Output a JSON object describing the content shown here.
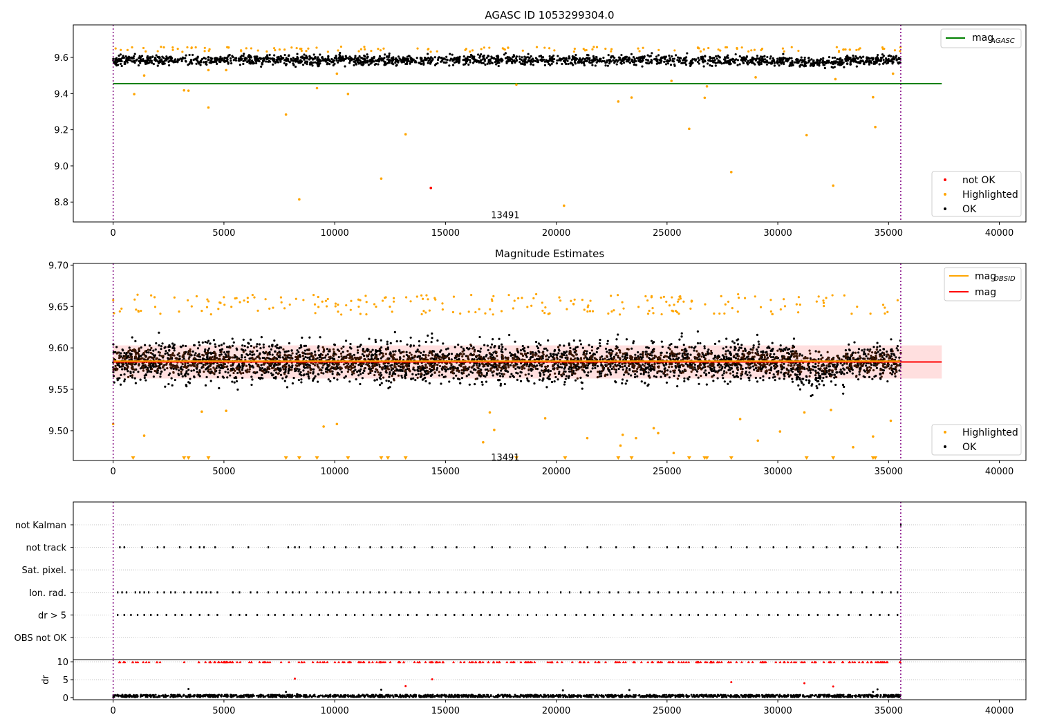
{
  "chart_data": [
    {
      "type": "scatter",
      "title": "AGASC ID 1053299304.0",
      "xlim": [
        -1800,
        41200
      ],
      "ylim": [
        8.69,
        9.78
      ],
      "xticks": [
        0,
        5000,
        10000,
        15000,
        20000,
        25000,
        30000,
        35000,
        40000
      ],
      "xtick_labels": [
        "0",
        "5000",
        "10000",
        "15000",
        "20000",
        "25000",
        "30000",
        "35000",
        "40000"
      ],
      "yticks": [
        8.8,
        9.0,
        9.2,
        9.4,
        9.6
      ],
      "ytick_labels": [
        "8.8",
        "9.0",
        "9.2",
        "9.4",
        "9.6"
      ],
      "vlines": [
        0,
        35550
      ],
      "vline_color": "#800080",
      "band": {
        "x": [
          0,
          35550
        ],
        "center": 9.585,
        "spread": 0.025
      },
      "hline": {
        "name": "mag_AGASC",
        "value": 9.455,
        "x": [
          0,
          37400
        ],
        "color": "#008000"
      },
      "annotation": {
        "text": "13491",
        "x": 17700,
        "y": 8.73
      },
      "highlighted_points": [
        [
          950,
          9.397
        ],
        [
          3200,
          9.418
        ],
        [
          3400,
          9.416
        ],
        [
          4300,
          9.323
        ],
        [
          7800,
          9.284
        ],
        [
          8400,
          8.815
        ],
        [
          9200,
          9.43
        ],
        [
          10600,
          9.398
        ],
        [
          12100,
          8.93
        ],
        [
          13200,
          9.175
        ],
        [
          14340,
          8.878
        ],
        [
          20350,
          8.78
        ],
        [
          22800,
          9.356
        ],
        [
          23400,
          9.378
        ],
        [
          26000,
          9.205
        ],
        [
          26700,
          9.377
        ],
        [
          27900,
          8.966
        ],
        [
          31300,
          9.17
        ],
        [
          32500,
          8.891
        ],
        [
          34300,
          9.38
        ],
        [
          34400,
          9.215
        ],
        [
          1400,
          9.5
        ],
        [
          4300,
          9.53
        ],
        [
          5100,
          9.53
        ],
        [
          10100,
          9.51
        ],
        [
          18200,
          9.45
        ],
        [
          25200,
          9.47
        ],
        [
          26800,
          9.44
        ],
        [
          29000,
          9.49
        ],
        [
          32600,
          9.48
        ],
        [
          35200,
          9.51
        ]
      ],
      "not_ok_points": [
        [
          14340,
          8.878
        ]
      ],
      "legend_lines": [
        {
          "label": "mag",
          "sub": "AGASC",
          "color": "#008000"
        }
      ],
      "legend_points": [
        {
          "label": "not OK",
          "color": "#ff0000"
        },
        {
          "label": "Highlighted",
          "color": "#ffa500"
        },
        {
          "label": "OK",
          "color": "#000000"
        }
      ]
    },
    {
      "type": "scatter",
      "title": "Magnitude Estimates",
      "xlim": [
        -1800,
        41200
      ],
      "ylim": [
        9.464,
        9.702
      ],
      "xticks": [
        0,
        5000,
        10000,
        15000,
        20000,
        25000,
        30000,
        35000,
        40000
      ],
      "xtick_labels": [
        "0",
        "5000",
        "10000",
        "15000",
        "20000",
        "25000",
        "30000",
        "35000",
        "40000"
      ],
      "yticks": [
        9.5,
        9.55,
        9.6,
        9.65,
        9.7
      ],
      "ytick_labels": [
        "9.50",
        "9.55",
        "9.60",
        "9.65",
        "9.70"
      ],
      "vlines": [
        0,
        35550
      ],
      "vline_color": "#800080",
      "band": {
        "x": [
          0,
          35550
        ],
        "center": 9.583,
        "spread": 0.022
      },
      "mag_band": {
        "x": [
          0,
          37400
        ],
        "lower": 9.563,
        "upper": 9.603,
        "color": "#ffc0c0"
      },
      "hlines": [
        {
          "name": "mag",
          "value": 9.583,
          "x": [
            0,
            37400
          ],
          "color": "#ff0000"
        },
        {
          "name": "mag_OBSID",
          "value": 9.584,
          "x": [
            0,
            35550
          ],
          "color": "#ffa500"
        }
      ],
      "annotation": {
        "text": "13491",
        "x": 17700,
        "y": 9.468
      },
      "highlighted_points": [
        [
          0,
          9.508
        ],
        [
          1400,
          9.494
        ],
        [
          4000,
          9.523
        ],
        [
          5100,
          9.524
        ],
        [
          9500,
          9.505
        ],
        [
          10100,
          9.508
        ],
        [
          17000,
          9.522
        ],
        [
          17200,
          9.501
        ],
        [
          19500,
          9.515
        ],
        [
          21400,
          9.491
        ],
        [
          23000,
          9.495
        ],
        [
          23600,
          9.491
        ],
        [
          24400,
          9.503
        ],
        [
          24600,
          9.497
        ],
        [
          25300,
          9.473
        ],
        [
          28300,
          9.514
        ],
        [
          29100,
          9.488
        ],
        [
          30100,
          9.499
        ],
        [
          31200,
          9.522
        ],
        [
          32400,
          9.525
        ],
        [
          33400,
          9.48
        ],
        [
          34300,
          9.493
        ],
        [
          35100,
          9.512
        ],
        [
          16700,
          9.486
        ],
        [
          22900,
          9.482
        ]
      ],
      "off_scale_x": [
        900,
        3200,
        3400,
        4300,
        7800,
        8400,
        9200,
        10600,
        12100,
        12400,
        13200,
        18200,
        20400,
        22800,
        23400,
        26000,
        26700,
        26800,
        27900,
        31300,
        32500,
        34300,
        34400
      ],
      "legend_lines": [
        {
          "label": "mag",
          "sub": "OBSID",
          "color": "#ffa500"
        },
        {
          "label": "mag",
          "sub": "",
          "color": "#ff0000"
        }
      ],
      "legend_points": [
        {
          "label": "Highlighted",
          "color": "#ffa500"
        },
        {
          "label": "OK",
          "color": "#000000"
        }
      ]
    },
    {
      "type": "scatter",
      "xlim": [
        -1800,
        41200
      ],
      "ylim": [
        -0.5,
        1.5
      ],
      "vlines": [
        0,
        35550
      ],
      "vline_color": "#800080",
      "flag_labels": [
        "not Kalman",
        "not track",
        "Sat. pixel.",
        "Ion. rad.",
        "dr > 5",
        "OBS not OK"
      ],
      "flag_series": [
        {
          "name": "not Kalman",
          "x": [
            35550
          ]
        },
        {
          "name": "not track",
          "x": [
            300,
            500,
            1300,
            2000,
            2300,
            3000,
            3500,
            3900,
            4100,
            4600,
            5400,
            6100,
            7000,
            7900,
            8200,
            8400,
            8900,
            9500,
            10000,
            10500,
            11100,
            11600,
            12100,
            12600,
            13000,
            13600,
            14400,
            15000,
            15500,
            16300,
            17100,
            17900,
            18800,
            19500,
            20400,
            21400,
            22000,
            22700,
            23500,
            24200,
            25000,
            25500,
            26000,
            26600,
            27200,
            27900,
            28600,
            29200,
            29800,
            30400,
            31000,
            31600,
            32200,
            32800,
            33400,
            34000,
            34600,
            35400
          ]
        },
        {
          "name": "Ion. rad.",
          "x": [
            200,
            400,
            600,
            1000,
            1200,
            1400,
            1600,
            2000,
            2300,
            2600,
            2800,
            3200,
            3500,
            3800,
            4000,
            4200,
            4400,
            4700,
            5400,
            5700,
            6200,
            6500,
            7000,
            7400,
            7800,
            8100,
            8400,
            8700,
            9200,
            9600,
            9900,
            10200,
            10600,
            11000,
            11300,
            11600,
            12000,
            12300,
            12700,
            13000,
            13400,
            13800,
            14300,
            14700,
            15100,
            15500,
            15900,
            16300,
            16700,
            17100,
            17500,
            17900,
            18300,
            18800,
            19200,
            19600,
            20200,
            20600,
            21100,
            21500,
            21900,
            22400,
            22800,
            23300,
            23700,
            24200,
            24600,
            25100,
            25500,
            25900,
            26300,
            26800,
            27100,
            27500,
            28000,
            28500,
            29000,
            29500,
            30000,
            30400,
            30900,
            31400,
            31900,
            32300,
            32800,
            33300,
            33800,
            34300,
            34700,
            35100,
            35400
          ]
        },
        {
          "name": "dr > 5",
          "x": [
            200,
            500,
            800,
            1100,
            1400,
            1700,
            2000,
            2400,
            2800,
            3100,
            3500,
            3900,
            4300,
            4700,
            5300,
            5700,
            6000,
            6500,
            7000,
            7300,
            7700,
            8100,
            8500,
            8900,
            9300,
            9700,
            10100,
            10500,
            10900,
            11300,
            11700,
            12100,
            12500,
            12900,
            13300,
            13700,
            14200,
            14600,
            15000,
            15400,
            15800,
            16200,
            16600,
            17000,
            17400,
            17800,
            18300,
            18700,
            19100,
            19600,
            20000,
            20400,
            20900,
            21300,
            21700,
            22100,
            22600,
            23000,
            23400,
            23900,
            24300,
            24700,
            25200,
            25600,
            26000,
            26400,
            26800,
            27200,
            27600,
            28100,
            28600,
            29100,
            29600,
            30000,
            30500,
            30900,
            31400,
            31800,
            32300,
            32700,
            33200,
            33700,
            34200,
            34600,
            35000,
            35400
          ]
        }
      ]
    },
    {
      "type": "scatter",
      "xlim": [
        -1800,
        41200
      ],
      "ylim": [
        -0.6,
        10.6
      ],
      "xticks": [
        0,
        5000,
        10000,
        15000,
        20000,
        25000,
        30000,
        35000,
        40000
      ],
      "xtick_labels": [
        "0",
        "5000",
        "10000",
        "15000",
        "20000",
        "25000",
        "30000",
        "35000",
        "40000"
      ],
      "yticks": [
        0,
        5,
        10
      ],
      "ytick_labels": [
        "0",
        "5",
        "10"
      ],
      "ylabel": "dr",
      "vlines": [
        0,
        35550
      ],
      "vline_color": "#800080",
      "band": {
        "x": [
          0,
          35550
        ],
        "center": 0.45,
        "spread": 0.35
      },
      "capped_value": 9.9,
      "red_points": [
        [
          8200,
          5.3
        ],
        [
          13200,
          3.2
        ],
        [
          14400,
          5.1
        ],
        [
          27900,
          4.3
        ],
        [
          31200,
          4.0
        ],
        [
          32500,
          3.1
        ]
      ],
      "black_points": [
        [
          3400,
          2.4
        ],
        [
          7800,
          1.6
        ],
        [
          8300,
          1.0
        ],
        [
          12100,
          2.2
        ],
        [
          20300,
          2.0
        ],
        [
          23300,
          2.1
        ],
        [
          34300,
          1.6
        ],
        [
          34500,
          2.3
        ]
      ]
    }
  ]
}
